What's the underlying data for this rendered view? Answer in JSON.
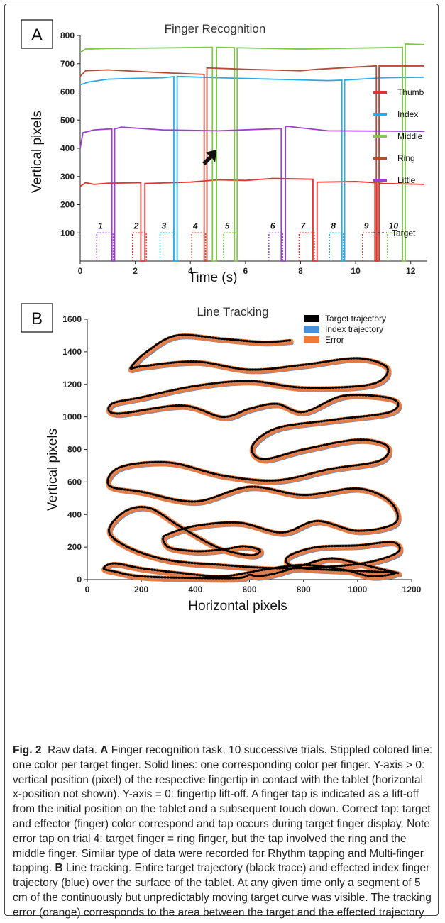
{
  "panel_a_letter": "A",
  "panel_b_letter": "B",
  "chart_data": [
    {
      "type": "line",
      "title": "Finger Recognition",
      "xlabel": "Time (s)",
      "ylabel": "Vertical pixels",
      "xlim": [
        0,
        12.6
      ],
      "ylim": [
        0,
        800
      ],
      "xticks": [
        "0",
        "2",
        "4",
        "6",
        "8",
        "10",
        "12"
      ],
      "yticks": [
        "100",
        "200",
        "300",
        "400",
        "500",
        "600",
        "700",
        "800"
      ],
      "series": [
        {
          "name": "Thumb",
          "color": "#e8302c",
          "baseline": 275,
          "x": [
            0.0,
            0.2,
            0.5,
            1.0,
            2.2,
            2.3,
            4.0,
            5.0,
            6.0,
            7.0,
            8.5,
            8.6,
            10.0,
            10.7,
            11.0,
            12.5
          ],
          "y": [
            265,
            278,
            272,
            276,
            278,
            275,
            280,
            288,
            286,
            293,
            290,
            280,
            282,
            278,
            275,
            272
          ],
          "liftoffs": [
            [
              2.2,
              2.35
            ],
            [
              8.45,
              8.6
            ],
            [
              10.7,
              10.8
            ]
          ]
        },
        {
          "name": "Index",
          "color": "#2aaae2",
          "baseline": 640,
          "x": [
            0.0,
            0.3,
            1.0,
            2.0,
            3.0,
            3.5,
            5.0,
            7.0,
            9.0,
            9.6,
            11.0,
            12.5
          ],
          "y": [
            625,
            635,
            645,
            648,
            650,
            655,
            650,
            645,
            640,
            642,
            650,
            652
          ],
          "liftoffs": [
            [
              3.4,
              3.52
            ],
            [
              9.5,
              9.6
            ]
          ]
        },
        {
          "name": "Middle",
          "color": "#7ec84a",
          "baseline": 755,
          "x": [
            0.0,
            0.2,
            1.0,
            3.0,
            4.6,
            5.0,
            8.0,
            11.7,
            11.8,
            12.5
          ],
          "y": [
            740,
            752,
            754,
            756,
            758,
            758,
            752,
            758,
            770,
            768
          ],
          "liftoffs": [
            [
              4.8,
              4.95
            ],
            [
              5.6,
              5.7
            ],
            [
              11.7,
              11.8
            ]
          ]
        },
        {
          "name": "Ring",
          "color": "#b84a36",
          "baseline": 665,
          "x": [
            0.0,
            0.2,
            1.0,
            3.0,
            4.5,
            4.6,
            6.0,
            8.0,
            8.6,
            10.7,
            12.5
          ],
          "y": [
            655,
            675,
            678,
            668,
            662,
            685,
            680,
            675,
            680,
            692,
            692
          ],
          "liftoffs": [
            [
              4.5,
              4.6
            ],
            [
              10.75,
              10.85
            ]
          ]
        },
        {
          "name": "Little",
          "color": "#9c3fcf",
          "baseline": 465,
          "x": [
            0.0,
            0.1,
            0.5,
            1.3,
            1.5,
            3.0,
            5.0,
            7.3,
            7.5,
            9.0,
            12.5
          ],
          "y": [
            400,
            455,
            465,
            470,
            475,
            465,
            462,
            470,
            478,
            462,
            460
          ],
          "liftoffs": [
            [
              1.15,
              1.25
            ],
            [
              7.3,
              7.45
            ]
          ]
        }
      ],
      "targets": [
        {
          "trial": "1",
          "finger": "Little",
          "start": 0.6,
          "end": 1.2
        },
        {
          "trial": "2",
          "finger": "Thumb",
          "start": 1.9,
          "end": 2.4
        },
        {
          "trial": "3",
          "finger": "Index",
          "start": 2.9,
          "end": 3.4
        },
        {
          "trial": "4",
          "finger": "Ring",
          "start": 4.05,
          "end": 4.55
        },
        {
          "trial": "5",
          "finger": "Middle",
          "start": 5.2,
          "end": 5.7
        },
        {
          "trial": "6",
          "finger": "Little",
          "start": 6.85,
          "end": 7.35
        },
        {
          "trial": "7",
          "finger": "Thumb",
          "start": 7.95,
          "end": 8.5
        },
        {
          "trial": "8",
          "finger": "Index",
          "start": 9.05,
          "end": 9.55
        },
        {
          "trial": "9",
          "finger": "Ring",
          "start": 10.25,
          "end": 10.75
        },
        {
          "trial": "10",
          "finger": "Middle",
          "start": 11.15,
          "end": 11.7
        }
      ],
      "target_level": 100,
      "target_legend": "Target",
      "arrow_at": {
        "x": 4.95,
        "y": 395
      }
    },
    {
      "type": "line",
      "title": "Line Tracking",
      "xlabel": "Horizontal pixels",
      "ylabel": "Vertical pixels",
      "xlim": [
        0,
        1200
      ],
      "ylim": [
        0,
        1600
      ],
      "xticks": [
        "0",
        "200",
        "400",
        "600",
        "800",
        "1000",
        "1200"
      ],
      "yticks": [
        "0",
        "200",
        "400",
        "600",
        "800",
        "1000",
        "1200",
        "1400",
        "1600"
      ],
      "series": [
        {
          "name": "Target trajectory",
          "color": "#000000"
        },
        {
          "name": "Index trajectory",
          "color": "#4a90d9"
        },
        {
          "name": "Error",
          "color": "#f07a3a"
        }
      ],
      "path": {
        "x": [
          750,
          650,
          500,
          330,
          220,
          160,
          200,
          400,
          600,
          800,
          1000,
          1110,
          1050,
          800,
          600,
          400,
          200,
          90,
          110,
          350,
          500,
          600,
          700,
          800,
          950,
          1130,
          1120,
          900,
          700,
          610,
          650,
          800,
          1000,
          1110,
          1080,
          900,
          700,
          500,
          300,
          120,
          80,
          200,
          400,
          600,
          800,
          1000,
          1120,
          1140,
          1000,
          850,
          720,
          560,
          400,
          300,
          280,
          300,
          360,
          430,
          520,
          580,
          640,
          600,
          480,
          340,
          230,
          140,
          80,
          150,
          300,
          500,
          700,
          900,
          1050,
          1150,
          1130,
          1000,
          850,
          750,
          740,
          800,
          900,
          1050,
          1140,
          1050,
          950,
          800,
          650,
          500,
          350,
          200,
          100,
          60,
          100,
          200,
          400,
          560,
          600,
          630,
          700,
          800,
          900,
          1000,
          1100,
          1150
        ],
        "y": [
          1470,
          1460,
          1480,
          1500,
          1400,
          1300,
          1310,
          1340,
          1290,
          1320,
          1360,
          1300,
          1200,
          1180,
          1220,
          1190,
          1120,
          1080,
          1020,
          1070,
          1000,
          1050,
          1080,
          1030,
          1130,
          1110,
          1030,
          980,
          930,
          820,
          740,
          800,
          860,
          820,
          730,
          680,
          610,
          640,
          720,
          690,
          580,
          540,
          480,
          570,
          520,
          560,
          480,
          350,
          300,
          360,
          290,
          350,
          330,
          280,
          250,
          200,
          180,
          175,
          190,
          205,
          180,
          150,
          200,
          330,
          440,
          420,
          300,
          200,
          120,
          90,
          70,
          80,
          110,
          170,
          230,
          210,
          200,
          150,
          100,
          70,
          60,
          50,
          40,
          20,
          60,
          90,
          60,
          20,
          40,
          70,
          100,
          70,
          50,
          20,
          10,
          10,
          30,
          20,
          40,
          90,
          130,
          100,
          60,
          40
        ]
      },
      "legend_position": "top-right"
    }
  ],
  "caption": {
    "fig_label": "Fig. 2",
    "intro": "Raw data. ",
    "a_label": "A",
    "a_text": " Finger recognition task. 10 successive trials. Stippled colored line: one color per target finger. Solid lines: one corresponding color per finger. Y-axis > 0: vertical position (pixel) of the respective fingertip in contact with the tablet (horizontal x-position not shown). Y-axis = 0: fingertip lift-off. A finger tap is indicated as a lift-off from the initial position on the tablet and a subsequent touch down. Correct tap: target and effector (finger) color correspond and tap occurs during target finger display. Note error tap on trial 4: target finger = ring finger, but the tap involved the ring and the middle finger. Similar type of data were recorded for Rhythm tapping and Multi-finger tapping. ",
    "b_label": "B",
    "b_text": " Line tracking. Entire target trajectory (black trace) and effected index finger trajectory (blue) over the surface of the tablet. At any given time only a segment of 5 cm of the continuously but unpredictably moving target curve was visible. The tracking error (orange) corresponds to the area between the target and the effected trajectory"
  }
}
